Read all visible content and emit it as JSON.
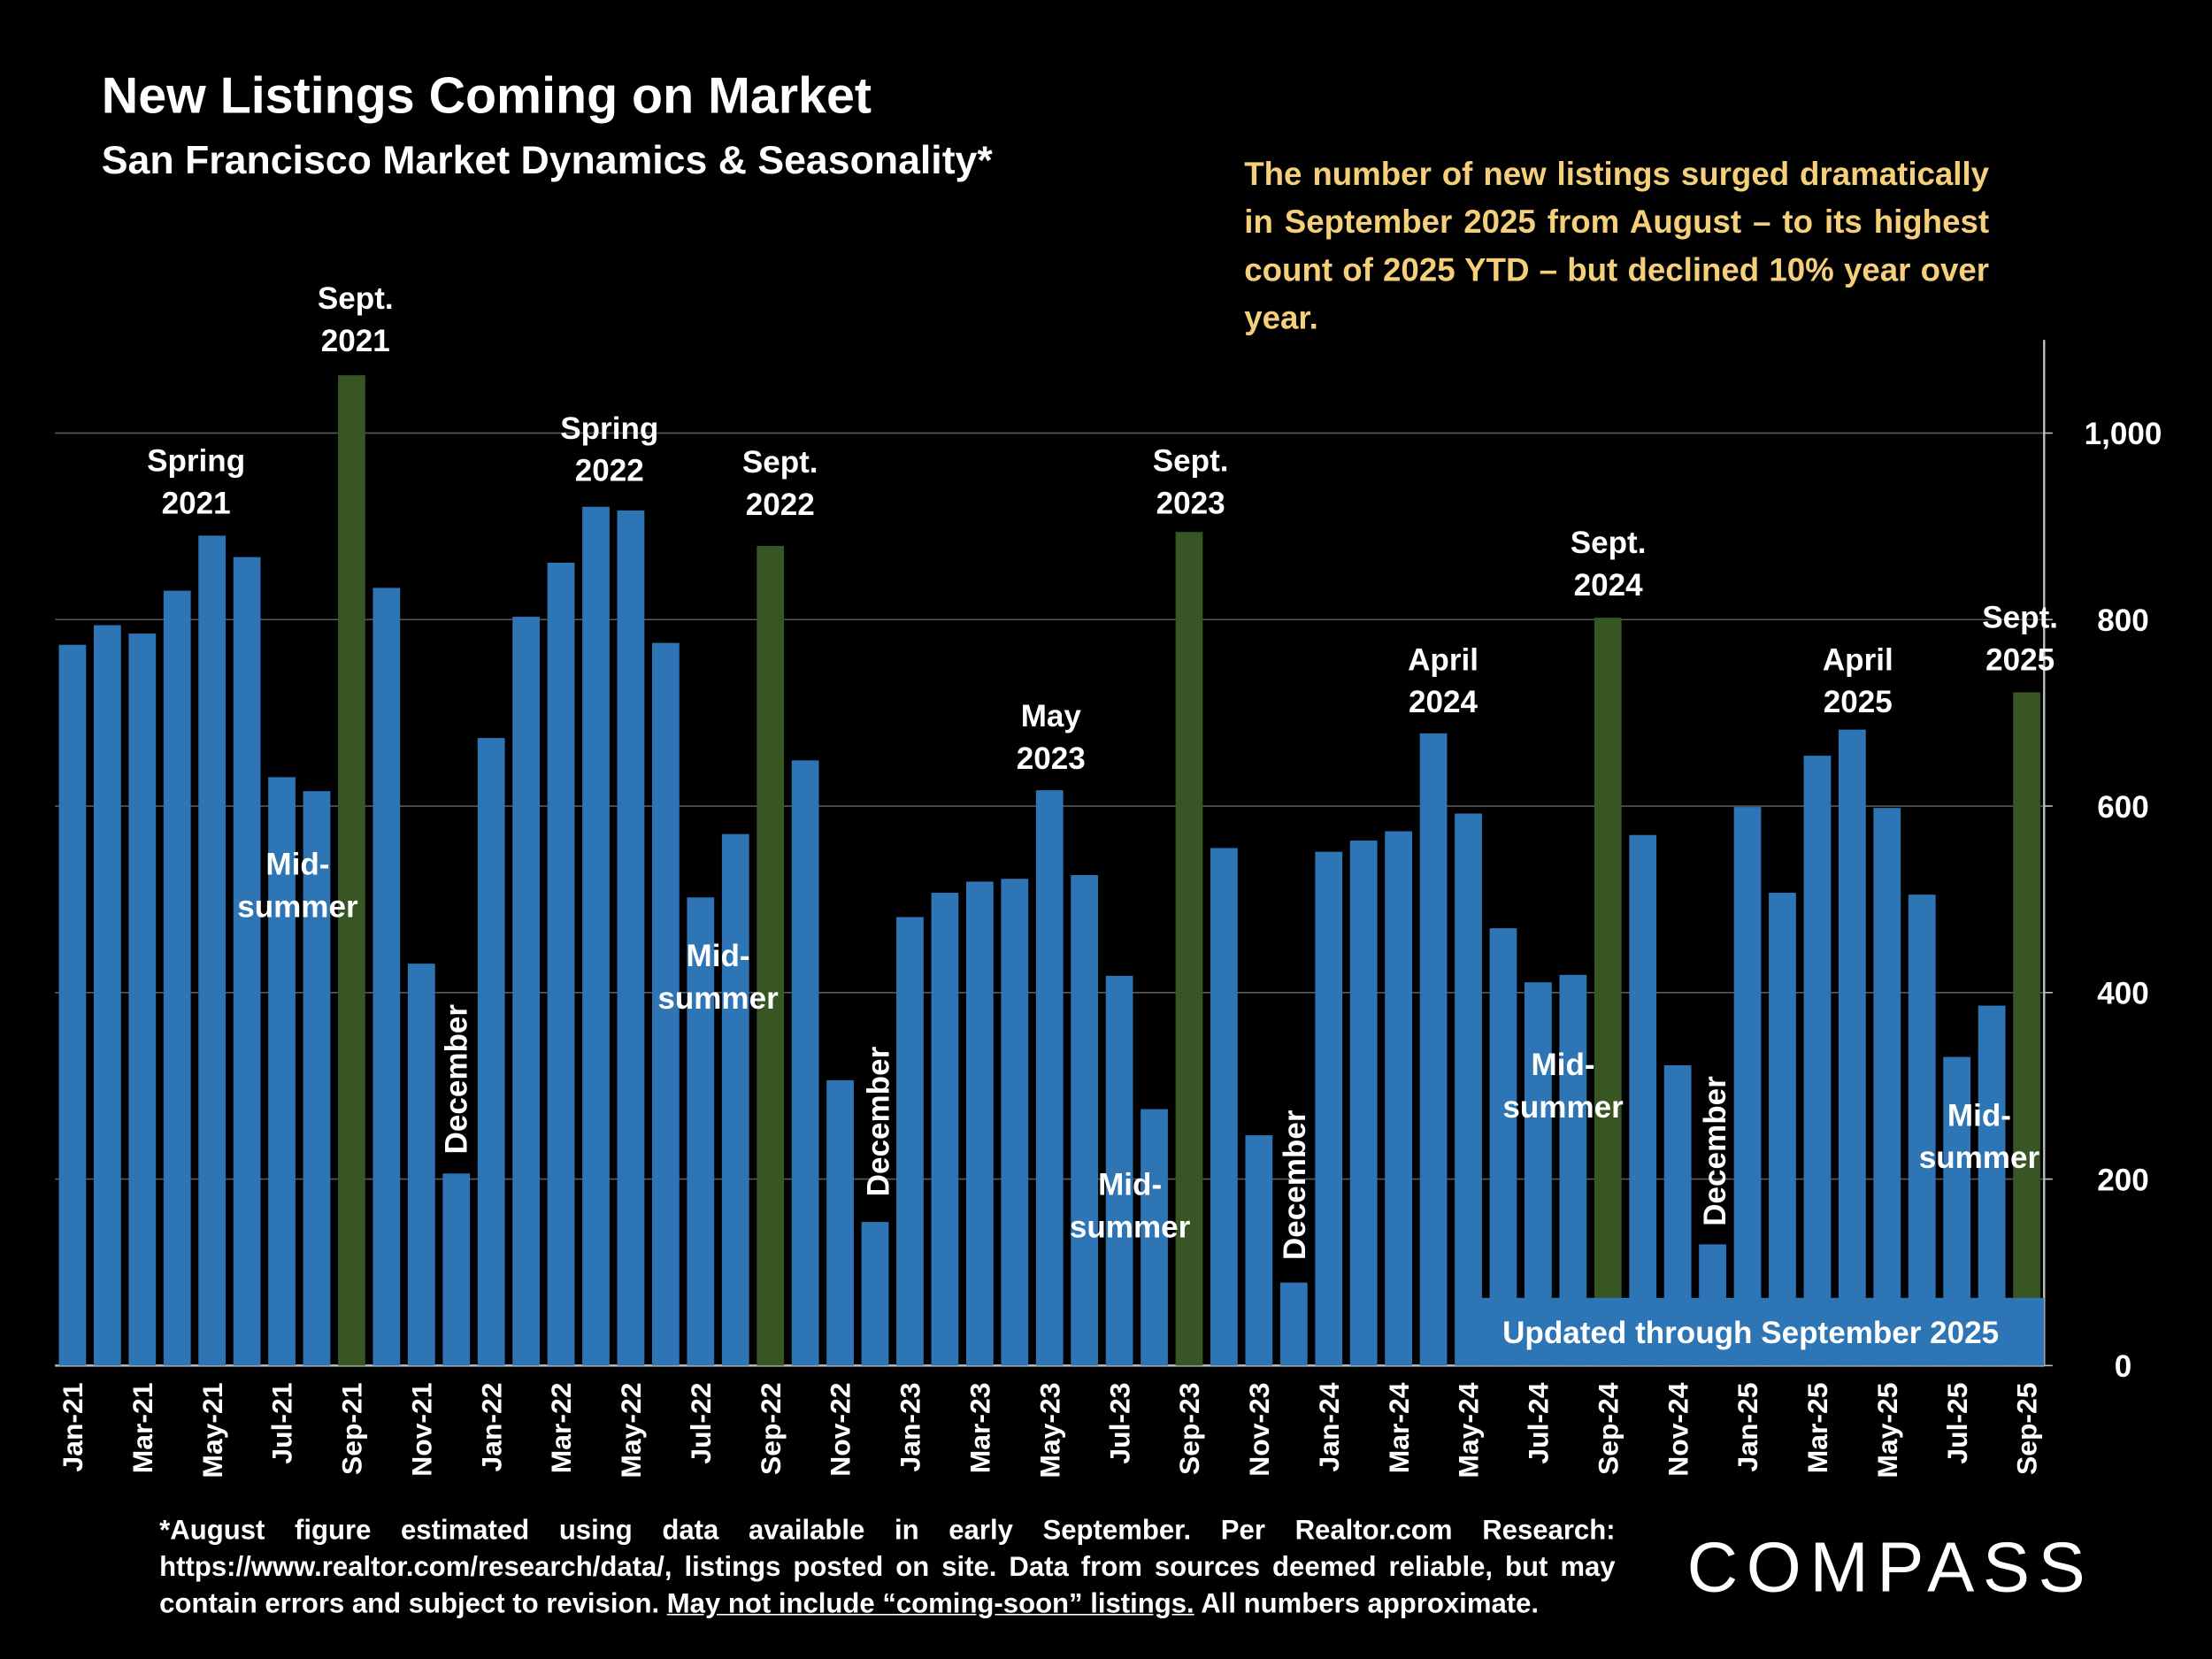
{
  "chart_data": {
    "type": "bar",
    "title": "New Listings Coming on Market",
    "subtitle": "San Francisco Market Dynamics & Seasonality*",
    "note": "The number of new listings surged dramatically in September 2025 from August – to its highest count of 2025 YTD – but declined 10% year over year.",
    "badge": "Updated through September 2025",
    "footnote": {
      "before": "*August figure estimated using data available in early September. Per Realtor.com Research: https://www.realtor.com/research/data/, listings posted on site. Data from sources deemed reliable, but may contain errors and subject to revision.",
      "underlined": "May not include “coming-soon” listings.",
      "after": "All numbers approximate."
    },
    "logo": "COMPASS",
    "categories": [
      "Jan-21",
      null,
      "Mar-21",
      null,
      "May-21",
      null,
      "Jul-21",
      null,
      "Sep-21",
      null,
      "Nov-21",
      null,
      "Jan-22",
      null,
      "Mar-22",
      null,
      "May-22",
      null,
      "Jul-22",
      null,
      "Sep-22",
      null,
      "Nov-22",
      null,
      "Jan-23",
      null,
      "Mar-23",
      null,
      "May-23",
      null,
      "Jul-23",
      null,
      "Sep-23",
      null,
      "Nov-23",
      null,
      "Jan-24",
      null,
      "Mar-24",
      null,
      "May-24",
      null,
      "Jul-24",
      null,
      "Sep-24",
      null,
      "Nov-24",
      null,
      "Jan-25",
      null,
      "Mar-25",
      null,
      "May-25",
      null,
      "Jul-25",
      null,
      "Sep-25"
    ],
    "values": [
      773,
      794,
      785,
      831,
      890,
      867,
      631,
      616,
      1062,
      834,
      431,
      206,
      673,
      803,
      861,
      921,
      917,
      775,
      502,
      570,
      879,
      649,
      306,
      154,
      481,
      507,
      519,
      522,
      617,
      526,
      418,
      275,
      894,
      555,
      247,
      89,
      551,
      563,
      573,
      678,
      592,
      469,
      411,
      419,
      802,
      569,
      322,
      130,
      599,
      507,
      654,
      682,
      598,
      505,
      331,
      386,
      722
    ],
    "colors": [
      "#2e75b6",
      "#2e75b6",
      "#2e75b6",
      "#2e75b6",
      "#2e75b6",
      "#2e75b6",
      "#2e75b6",
      "#2e75b6",
      "#375623",
      "#2e75b6",
      "#2e75b6",
      "#2e75b6",
      "#2e75b6",
      "#2e75b6",
      "#2e75b6",
      "#2e75b6",
      "#2e75b6",
      "#2e75b6",
      "#2e75b6",
      "#2e75b6",
      "#375623",
      "#2e75b6",
      "#2e75b6",
      "#2e75b6",
      "#2e75b6",
      "#2e75b6",
      "#2e75b6",
      "#2e75b6",
      "#2e75b6",
      "#2e75b6",
      "#2e75b6",
      "#2e75b6",
      "#375623",
      "#2e75b6",
      "#2e75b6",
      "#2e75b6",
      "#2e75b6",
      "#2e75b6",
      "#2e75b6",
      "#2e75b6",
      "#2e75b6",
      "#2e75b6",
      "#2e75b6",
      "#2e75b6",
      "#375623",
      "#2e75b6",
      "#2e75b6",
      "#2e75b6",
      "#2e75b6",
      "#2e75b6",
      "#2e75b6",
      "#2e75b6",
      "#2e75b6",
      "#2e75b6",
      "#2e75b6",
      "#2e75b6",
      "#375623"
    ],
    "ylim": [
      0,
      1100
    ],
    "yticks": [
      0,
      200,
      400,
      600,
      800,
      {
        "value": 1000,
        "label": "1,000"
      }
    ],
    "grid": true,
    "annotations": [
      {
        "lines": [
          "Spring",
          "2021"
        ]
      },
      {
        "lines": [
          "Sept.",
          "2021"
        ]
      },
      {
        "lines": [
          "Mid-",
          "summer"
        ]
      },
      {
        "lines": [
          "December"
        ]
      },
      {
        "lines": [
          "Spring",
          "2022"
        ]
      },
      {
        "lines": [
          "Sept.",
          "2022"
        ]
      },
      {
        "lines": [
          "Mid-",
          "summer"
        ]
      },
      {
        "lines": [
          "December"
        ]
      },
      {
        "lines": [
          "May",
          "2023"
        ]
      },
      {
        "lines": [
          "Sept.",
          "2023"
        ]
      },
      {
        "lines": [
          "Mid-",
          "summer"
        ]
      },
      {
        "lines": [
          "December"
        ]
      },
      {
        "lines": [
          "April",
          "2024"
        ]
      },
      {
        "lines": [
          "Sept.",
          "2024"
        ]
      },
      {
        "lines": [
          "Mid-",
          "summer"
        ]
      },
      {
        "lines": [
          "December"
        ]
      },
      {
        "lines": [
          "April",
          "2025"
        ]
      },
      {
        "lines": [
          "Sept.",
          "2025"
        ]
      },
      {
        "lines": [
          "Mid-",
          "summer"
        ]
      }
    ]
  }
}
